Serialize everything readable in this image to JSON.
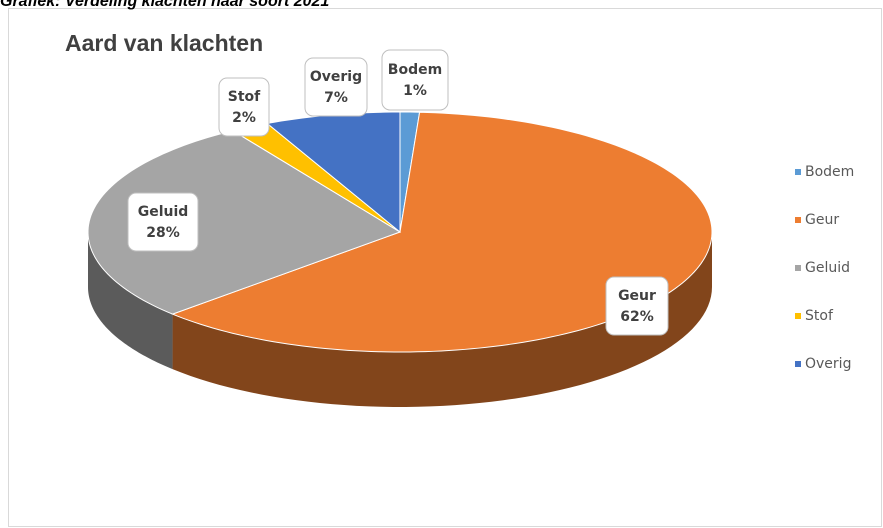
{
  "caption": "Grafiek: Verdeling klachten naar soort 2021",
  "chart_data": {
    "type": "pie",
    "title": "Aard van klachten",
    "categories": [
      "Bodem",
      "Geur",
      "Geluid",
      "Stof",
      "Overig"
    ],
    "values": [
      1,
      62,
      28,
      2,
      7
    ],
    "value_labels": [
      "1%",
      "62%",
      "28%",
      "2%",
      "7%"
    ],
    "colors": [
      "#5b9bd5",
      "#ed7d31",
      "#a5a5a5",
      "#ffc000",
      "#4472c4"
    ],
    "legend": "right"
  }
}
